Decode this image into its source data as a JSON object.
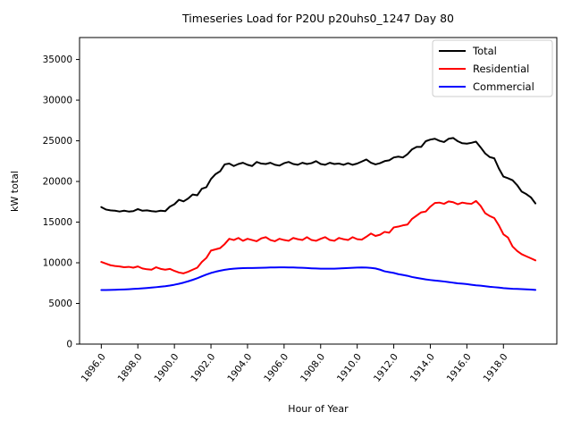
{
  "figure": {
    "title": "Timeseries Load for P20U p20uhs0_1247  Day 80",
    "xlabel": "Hour of Year",
    "ylabel": "kW total",
    "background": "#ffffff"
  },
  "chart_data": {
    "type": "line",
    "title": "Timeseries Load for P20U p20uhs0_1247  Day 80",
    "xlabel": "Hour of Year",
    "ylabel": "kW total",
    "grid": false,
    "legend_position": "upper right",
    "xlim": [
      1894.81,
      1920.92
    ],
    "ylim": [
      0,
      37700
    ],
    "xticks": [
      1896,
      1898,
      1900,
      1902,
      1904,
      1906,
      1908,
      1910,
      1912,
      1914,
      1916,
      1918
    ],
    "xtick_labels": [
      "1896.0",
      "1898.0",
      "1900.0",
      "1902.0",
      "1904.0",
      "1906.0",
      "1908.0",
      "1910.0",
      "1912.0",
      "1914.0",
      "1916.0",
      "1918.0"
    ],
    "yticks": [
      0,
      5000,
      10000,
      15000,
      20000,
      25000,
      30000,
      35000
    ],
    "ytick_labels": [
      "0",
      "5000",
      "10000",
      "15000",
      "20000",
      "25000",
      "30000",
      "35000"
    ],
    "x": [
      1896.0,
      1896.25,
      1896.5,
      1896.75,
      1897.0,
      1897.25,
      1897.5,
      1897.75,
      1898.0,
      1898.25,
      1898.5,
      1898.75,
      1899.0,
      1899.25,
      1899.5,
      1899.75,
      1900.0,
      1900.25,
      1900.5,
      1900.75,
      1901.0,
      1901.25,
      1901.5,
      1901.75,
      1902.0,
      1902.25,
      1902.5,
      1902.75,
      1903.0,
      1903.25,
      1903.5,
      1903.75,
      1904.0,
      1904.25,
      1904.5,
      1904.75,
      1905.0,
      1905.25,
      1905.5,
      1905.75,
      1906.0,
      1906.25,
      1906.5,
      1906.75,
      1907.0,
      1907.25,
      1907.5,
      1907.75,
      1908.0,
      1908.25,
      1908.5,
      1908.75,
      1909.0,
      1909.25,
      1909.5,
      1909.75,
      1910.0,
      1910.25,
      1910.5,
      1910.75,
      1911.0,
      1911.25,
      1911.5,
      1911.75,
      1912.0,
      1912.25,
      1912.5,
      1912.75,
      1913.0,
      1913.25,
      1913.5,
      1913.75,
      1914.0,
      1914.25,
      1914.5,
      1914.75,
      1915.0,
      1915.25,
      1915.5,
      1915.75,
      1916.0,
      1916.25,
      1916.5,
      1916.75,
      1917.0,
      1917.25,
      1917.5,
      1917.75,
      1918.0,
      1918.25,
      1918.5,
      1918.75,
      1919.0,
      1919.25,
      1919.5,
      1919.75
    ],
    "series": [
      {
        "name": "Total",
        "color": "#000000",
        "values": [
          16850,
          16550,
          16450,
          16400,
          16300,
          16400,
          16300,
          16350,
          16600,
          16400,
          16450,
          16350,
          16300,
          16400,
          16350,
          16900,
          17200,
          17750,
          17550,
          17900,
          18400,
          18300,
          19100,
          19300,
          20300,
          20900,
          21250,
          22100,
          22200,
          21900,
          22150,
          22300,
          22050,
          21900,
          22400,
          22200,
          22150,
          22300,
          22050,
          21950,
          22250,
          22400,
          22150,
          22050,
          22300,
          22150,
          22250,
          22500,
          22150,
          22050,
          22300,
          22150,
          22200,
          22050,
          22250,
          22050,
          22200,
          22450,
          22700,
          22300,
          22100,
          22250,
          22500,
          22600,
          22950,
          23050,
          22950,
          23350,
          23950,
          24250,
          24250,
          24950,
          25150,
          25250,
          25000,
          24850,
          25250,
          25350,
          24950,
          24700,
          24650,
          24750,
          24900,
          24200,
          23450,
          23000,
          22850,
          21600,
          20600,
          20400,
          20150,
          19550,
          18750,
          18450,
          18050,
          17300
        ]
      },
      {
        "name": "Residential",
        "color": "#ff0000",
        "values": [
          10100,
          9900,
          9700,
          9600,
          9550,
          9450,
          9500,
          9400,
          9550,
          9300,
          9200,
          9150,
          9450,
          9250,
          9150,
          9250,
          9000,
          8800,
          8700,
          8900,
          9150,
          9400,
          10100,
          10600,
          11500,
          11650,
          11800,
          12300,
          12950,
          12800,
          13050,
          12700,
          12950,
          12800,
          12650,
          13000,
          13150,
          12800,
          12650,
          12950,
          12800,
          12700,
          13050,
          12900,
          12800,
          13150,
          12800,
          12700,
          12950,
          13150,
          12800,
          12700,
          13050,
          12900,
          12800,
          13150,
          12900,
          12850,
          13200,
          13600,
          13300,
          13450,
          13800,
          13700,
          14350,
          14450,
          14600,
          14700,
          15400,
          15800,
          16200,
          16300,
          16900,
          17350,
          17400,
          17250,
          17550,
          17450,
          17200,
          17400,
          17300,
          17250,
          17600,
          17000,
          16100,
          15750,
          15500,
          14600,
          13500,
          13100,
          12000,
          11450,
          11050,
          10800,
          10550,
          10300
        ]
      },
      {
        "name": "Commercial",
        "color": "#0000ff",
        "values": [
          6650,
          6650,
          6660,
          6680,
          6700,
          6720,
          6750,
          6780,
          6820,
          6860,
          6900,
          6950,
          7000,
          7060,
          7120,
          7200,
          7300,
          7420,
          7560,
          7720,
          7900,
          8100,
          8330,
          8550,
          8750,
          8900,
          9030,
          9140,
          9220,
          9280,
          9320,
          9340,
          9350,
          9360,
          9370,
          9380,
          9400,
          9420,
          9430,
          9440,
          9440,
          9430,
          9420,
          9400,
          9380,
          9350,
          9320,
          9300,
          9280,
          9270,
          9270,
          9280,
          9300,
          9330,
          9360,
          9390,
          9410,
          9420,
          9410,
          9370,
          9300,
          9150,
          8950,
          8850,
          8750,
          8600,
          8500,
          8400,
          8250,
          8150,
          8050,
          7950,
          7880,
          7820,
          7760,
          7700,
          7620,
          7550,
          7470,
          7430,
          7380,
          7300,
          7230,
          7180,
          7120,
          7050,
          7000,
          6950,
          6880,
          6840,
          6800,
          6780,
          6760,
          6730,
          6700,
          6670
        ]
      }
    ]
  }
}
